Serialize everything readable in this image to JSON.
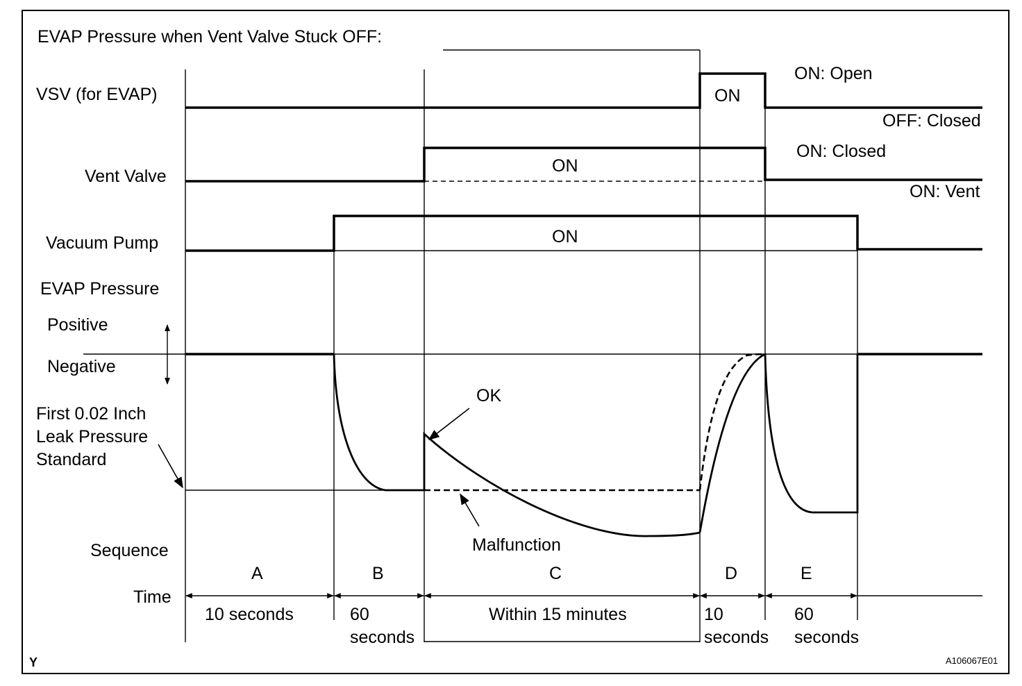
{
  "title": "EVAP Pressure when Vent Valve Stuck OFF:",
  "signals": {
    "vsv_label": "VSV (for EVAP)",
    "vent_valve_label": "Vent Valve",
    "vacuum_pump_label": "Vacuum Pump",
    "evap_pressure_label": "EVAP Pressure",
    "positive_label": "Positive",
    "negative_label": "Negative",
    "standard_label_1": "First 0.02 Inch",
    "standard_label_2": "Leak Pressure",
    "standard_label_3": "Standard",
    "sequence_label": "Sequence",
    "time_label": "Time"
  },
  "states": {
    "vsv_on": "ON",
    "vent_on": "ON",
    "pump_on": "ON",
    "vsv_on_open": "ON: Open",
    "vsv_off_closed": "OFF: Closed",
    "vent_on_closed": "ON: Closed",
    "vent_on_vent": "ON: Vent",
    "ok": "OK",
    "malfunction": "Malfunction"
  },
  "sequence": {
    "a": "A",
    "b": "B",
    "c": "C",
    "d": "D",
    "e": "E"
  },
  "times": {
    "a": "10 seconds",
    "b_1": "60",
    "b_2": "seconds",
    "c": "Within 15 minutes",
    "d_1": "10",
    "d_2": "seconds",
    "e_1": "60",
    "e_2": "seconds"
  },
  "footer": {
    "corner_mark": "Y",
    "figure_code": "A106067E01"
  }
}
